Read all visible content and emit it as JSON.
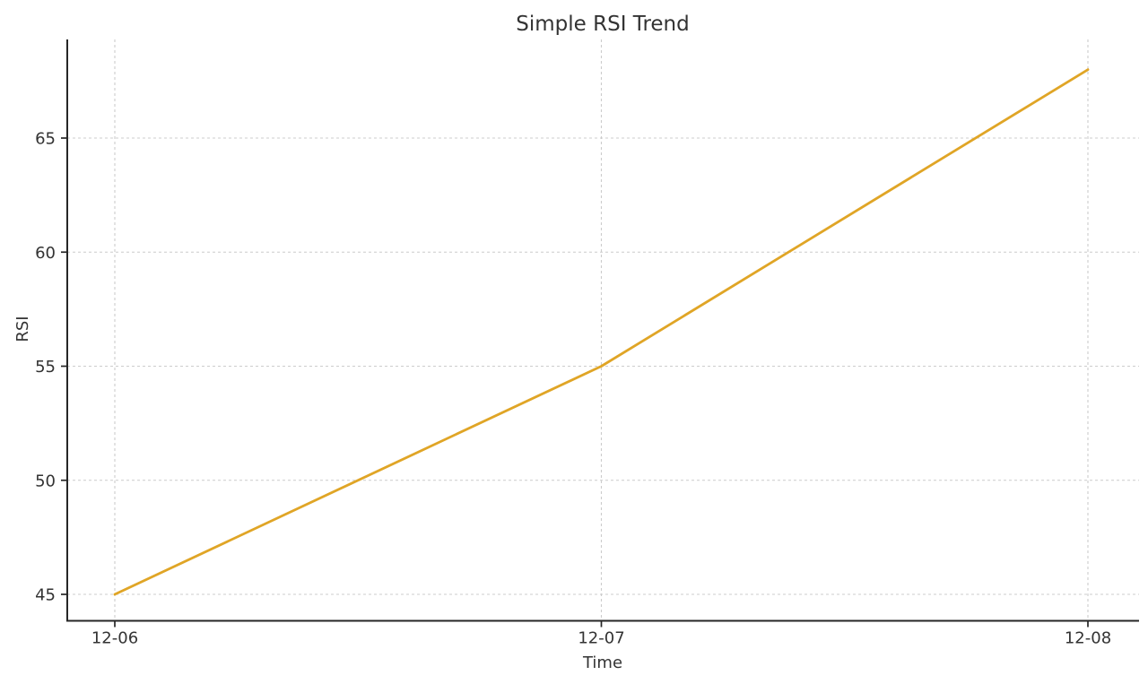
{
  "chart_data": {
    "type": "line",
    "title": "Simple RSI Trend",
    "xlabel": "Time",
    "ylabel": "RSI",
    "x": [
      "12-06",
      "12-07",
      "12-08"
    ],
    "series": [
      {
        "name": "RSI",
        "values": [
          45,
          55,
          68
        ]
      }
    ],
    "yticks": [
      45,
      50,
      55,
      60,
      65
    ],
    "ylim": [
      43.8,
      69.3
    ],
    "grid": true,
    "grid_style": "dashed",
    "legend": "none",
    "colors": {
      "line": "#E0A526",
      "grid": "#cccccc",
      "axis": "#262626",
      "text": "#333333",
      "background": "#ffffff"
    }
  }
}
